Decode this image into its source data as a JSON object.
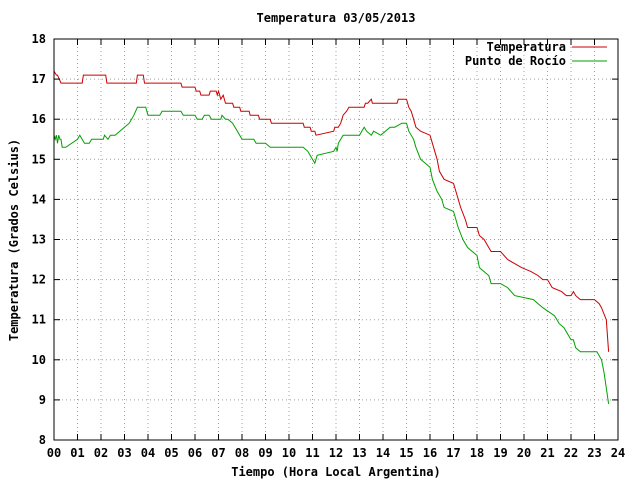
{
  "chart_data": {
    "type": "line",
    "title": "Temperatura 03/05/2013",
    "xlabel": "Tiempo (Hora Local Argentina)",
    "ylabel": "Temperatura (Grados Celsius)",
    "xlim": [
      0,
      24
    ],
    "ylim": [
      8,
      18
    ],
    "xticks": [
      "00",
      "01",
      "02",
      "03",
      "04",
      "05",
      "06",
      "07",
      "08",
      "09",
      "10",
      "11",
      "12",
      "13",
      "14",
      "15",
      "16",
      "17",
      "18",
      "19",
      "20",
      "21",
      "22",
      "23",
      "24"
    ],
    "yticks": [
      "8",
      "9",
      "10",
      "11",
      "12",
      "13",
      "14",
      "15",
      "16",
      "17",
      "18"
    ],
    "grid": true,
    "legend_position": "top-right",
    "series": [
      {
        "name": "Temperatura",
        "color": "#cc0000",
        "x": [
          0,
          0.1,
          0.15,
          0.3,
          0.35,
          1.2,
          1.25,
          2.2,
          2.25,
          3.5,
          3.55,
          3.8,
          3.85,
          4.5,
          4.55,
          5.4,
          5.45,
          6.0,
          6.05,
          6.2,
          6.25,
          6.6,
          6.65,
          6.9,
          6.95,
          7.0,
          7.1,
          7.2,
          7.3,
          7.6,
          7.65,
          7.9,
          7.95,
          8.3,
          8.35,
          8.7,
          8.75,
          9.2,
          9.25,
          10.6,
          10.65,
          10.9,
          10.95,
          11.1,
          11.15,
          11.9,
          11.95,
          12.1,
          12.2,
          12.3,
          12.45,
          12.55,
          13.2,
          13.25,
          13.35,
          13.5,
          13.55,
          14.6,
          14.65,
          15.0,
          15.1,
          15.2,
          15.3,
          15.4,
          15.6,
          16.0,
          16.1,
          16.3,
          16.4,
          16.6,
          17.0,
          17.1,
          17.3,
          17.5,
          17.6,
          18.0,
          18.1,
          18.3,
          18.4,
          18.6,
          19.0,
          19.3,
          19.6,
          19.9,
          20.3,
          20.6,
          20.8,
          21.0,
          21.2,
          21.6,
          21.8,
          22.0,
          22.1,
          22.2,
          22.4,
          22.7,
          23.0,
          23.2,
          23.3,
          23.5,
          23.6
        ],
        "y": [
          17.2,
          17.1,
          17.1,
          16.9,
          16.9,
          16.9,
          17.1,
          17.1,
          16.9,
          16.9,
          17.1,
          17.1,
          16.9,
          16.9,
          16.9,
          16.9,
          16.8,
          16.8,
          16.7,
          16.7,
          16.6,
          16.6,
          16.7,
          16.7,
          16.6,
          16.7,
          16.5,
          16.6,
          16.4,
          16.4,
          16.3,
          16.3,
          16.2,
          16.2,
          16.1,
          16.1,
          16.0,
          16.0,
          15.9,
          15.9,
          15.8,
          15.8,
          15.7,
          15.7,
          15.6,
          15.7,
          15.8,
          15.8,
          15.9,
          16.1,
          16.2,
          16.3,
          16.3,
          16.4,
          16.4,
          16.5,
          16.4,
          16.4,
          16.5,
          16.5,
          16.3,
          16.2,
          16.0,
          15.8,
          15.7,
          15.6,
          15.4,
          15.0,
          14.7,
          14.5,
          14.4,
          14.2,
          13.8,
          13.5,
          13.3,
          13.3,
          13.1,
          13.0,
          12.9,
          12.7,
          12.7,
          12.5,
          12.4,
          12.3,
          12.2,
          12.1,
          12.0,
          12.0,
          11.8,
          11.7,
          11.6,
          11.6,
          11.7,
          11.6,
          11.5,
          11.5,
          11.5,
          11.4,
          11.3,
          11.0,
          10.2
        ]
      },
      {
        "name": "Punto de Rocío",
        "color": "#00a000",
        "x": [
          0,
          0.05,
          0.1,
          0.15,
          0.2,
          0.25,
          0.3,
          0.35,
          0.5,
          1.0,
          1.1,
          1.3,
          1.5,
          1.6,
          2.1,
          2.15,
          2.3,
          2.4,
          2.6,
          2.8,
          3.0,
          3.2,
          3.4,
          3.55,
          3.6,
          3.9,
          4.0,
          4.5,
          4.6,
          5.4,
          5.5,
          6.0,
          6.1,
          6.3,
          6.4,
          6.6,
          6.7,
          7.1,
          7.15,
          7.3,
          7.4,
          7.6,
          7.7,
          7.9,
          8.0,
          8.5,
          8.6,
          9.0,
          9.2,
          10.6,
          10.8,
          10.9,
          11.0,
          11.1,
          11.2,
          11.9,
          12.0,
          12.05,
          12.1,
          12.2,
          12.3,
          12.4,
          12.6,
          13.0,
          13.1,
          13.2,
          13.3,
          13.5,
          13.6,
          13.9,
          14.1,
          14.3,
          14.5,
          14.8,
          15.0,
          15.1,
          15.3,
          15.4,
          15.6,
          15.8,
          16.0,
          16.1,
          16.3,
          16.5,
          16.6,
          17.0,
          17.2,
          17.4,
          17.6,
          18.0,
          18.1,
          18.5,
          18.6,
          19.0,
          19.3,
          19.6,
          20.4,
          20.6,
          20.8,
          21.3,
          21.5,
          21.7,
          22.0,
          22.1,
          22.2,
          22.4,
          23.0,
          23.1,
          23.3,
          23.4,
          23.5,
          23.6
        ],
        "y": [
          15.6,
          15.5,
          15.6,
          15.4,
          15.6,
          15.5,
          15.5,
          15.3,
          15.3,
          15.5,
          15.6,
          15.4,
          15.4,
          15.5,
          15.5,
          15.6,
          15.5,
          15.6,
          15.6,
          15.7,
          15.8,
          15.9,
          16.1,
          16.3,
          16.3,
          16.3,
          16.1,
          16.1,
          16.2,
          16.2,
          16.1,
          16.1,
          16.0,
          16.0,
          16.1,
          16.1,
          16.0,
          16.0,
          16.1,
          16.0,
          16.0,
          15.9,
          15.8,
          15.6,
          15.5,
          15.5,
          15.4,
          15.4,
          15.3,
          15.3,
          15.2,
          15.1,
          15.0,
          14.9,
          15.1,
          15.2,
          15.3,
          15.2,
          15.4,
          15.5,
          15.6,
          15.6,
          15.6,
          15.6,
          15.7,
          15.8,
          15.7,
          15.6,
          15.7,
          15.6,
          15.7,
          15.8,
          15.8,
          15.9,
          15.9,
          15.7,
          15.5,
          15.3,
          15.0,
          14.9,
          14.8,
          14.5,
          14.2,
          14.0,
          13.8,
          13.7,
          13.3,
          13.0,
          12.8,
          12.6,
          12.3,
          12.1,
          11.9,
          11.9,
          11.8,
          11.6,
          11.5,
          11.4,
          11.3,
          11.1,
          10.9,
          10.8,
          10.5,
          10.5,
          10.3,
          10.2,
          10.2,
          10.2,
          10.0,
          9.7,
          9.3,
          8.9
        ]
      }
    ]
  }
}
